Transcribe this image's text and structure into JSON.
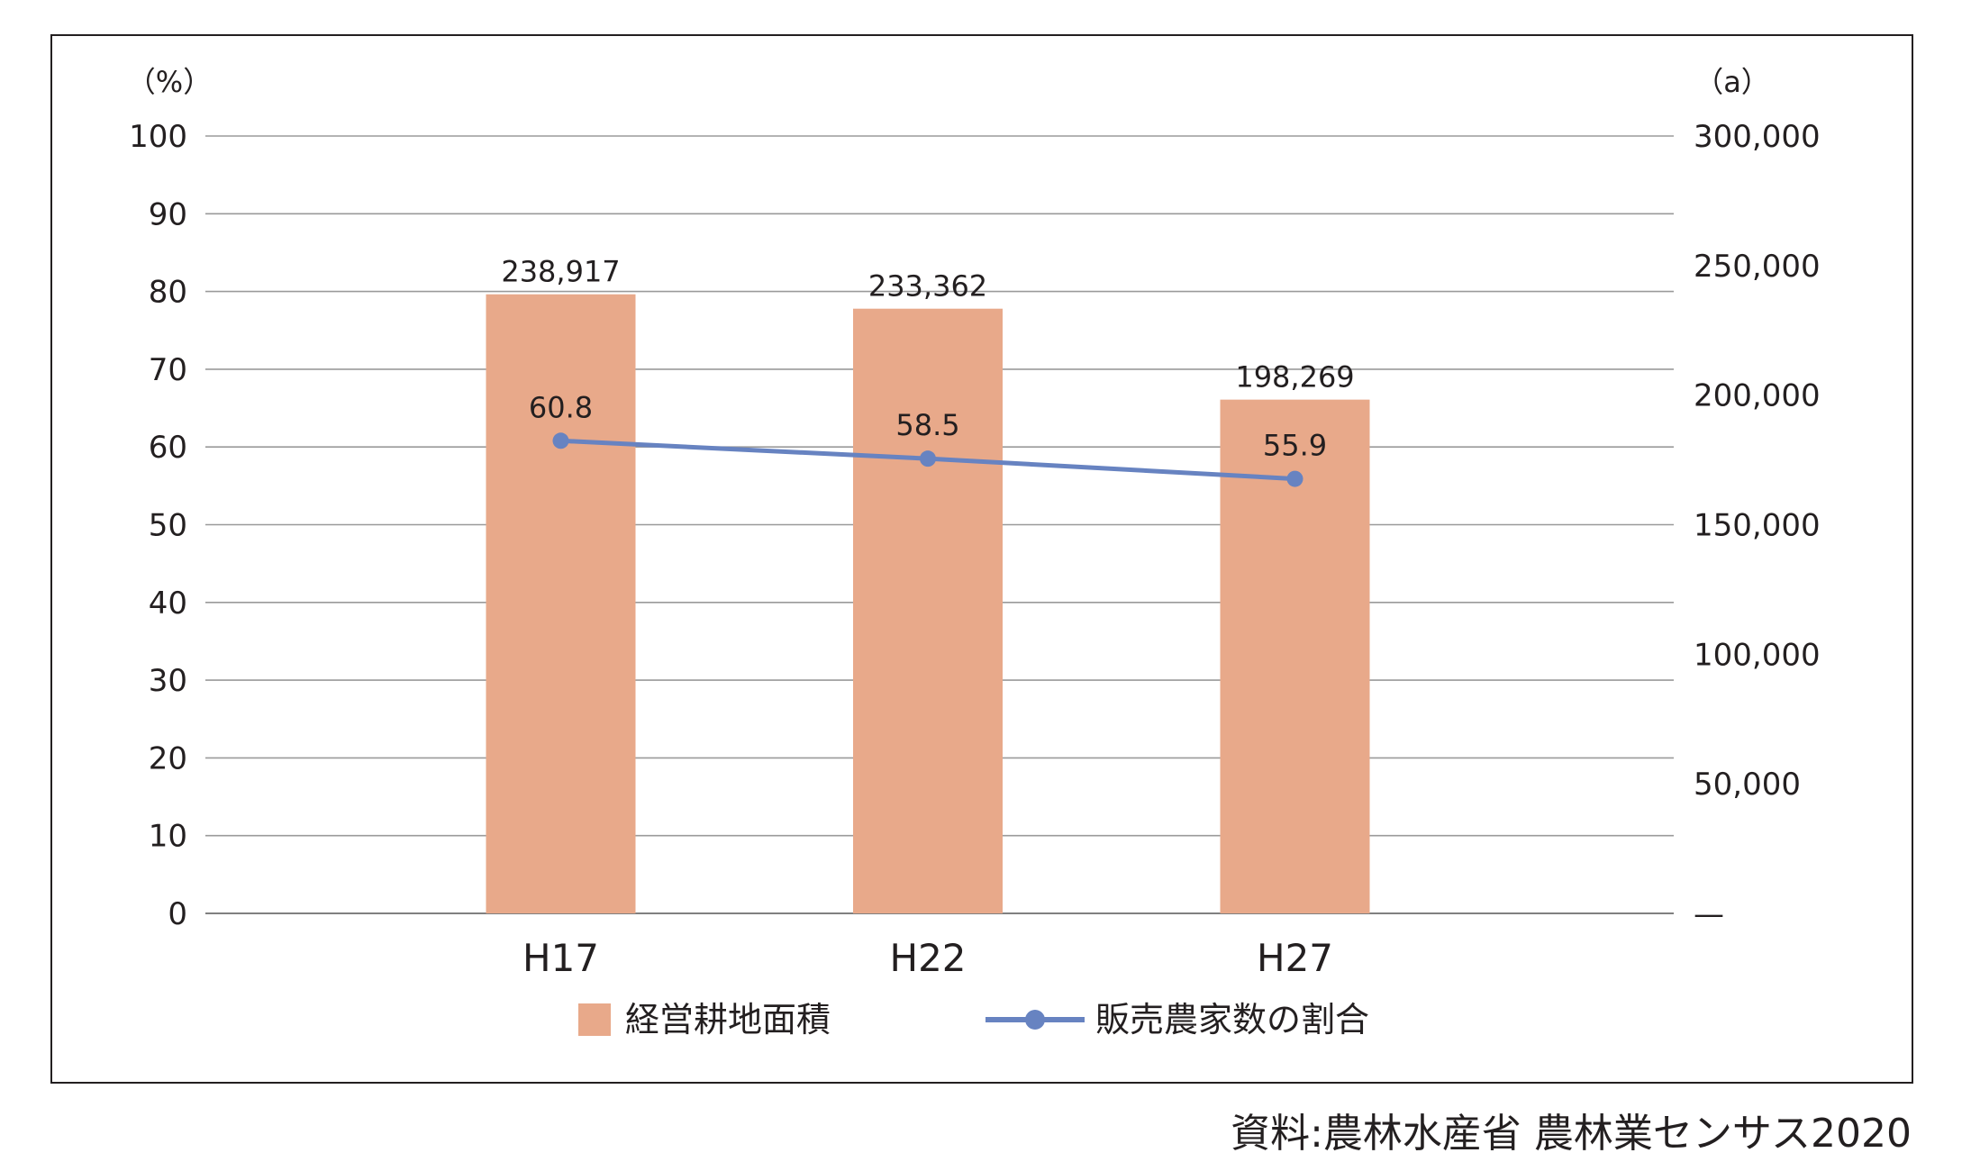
{
  "chart_data": {
    "type": "bar",
    "title": "",
    "categories": [
      "H17",
      "H22",
      "H27"
    ],
    "series": [
      {
        "name": "経営耕地面積",
        "type": "bar",
        "axis": "right",
        "values": [
          238917,
          233362,
          198269
        ],
        "labels": [
          "238,917",
          "233,362",
          "198,269"
        ],
        "color": "#e8a98a"
      },
      {
        "name": "販売農家数の割合",
        "type": "line",
        "axis": "left",
        "values": [
          60.8,
          58.5,
          55.9
        ],
        "labels": [
          "60.8",
          "58.5",
          "55.9"
        ],
        "color": "#6783c1"
      }
    ],
    "y_left": {
      "unit": "（%）",
      "ylim": [
        0,
        100
      ],
      "ticks": [
        "0",
        "10",
        "20",
        "30",
        "40",
        "50",
        "60",
        "70",
        "80",
        "90",
        "100"
      ]
    },
    "y_right": {
      "unit": "（a）",
      "ylim": [
        0,
        300000
      ],
      "ticks": [
        "—",
        "50,000",
        "100,000",
        "150,000",
        "200,000",
        "250,000",
        "300,000"
      ]
    },
    "grid": true,
    "legend_position": "bottom"
  },
  "source_note": "資料:農林水産省 農林業センサス2020"
}
